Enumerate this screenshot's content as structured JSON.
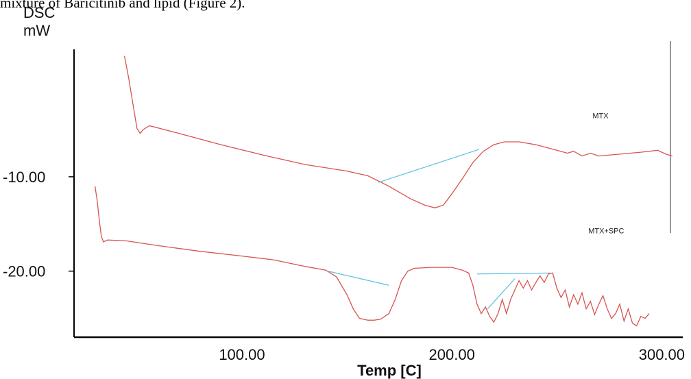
{
  "caption": "mixture of Baricitinib and lipid (Figure 2).",
  "chart_data": {
    "type": "line",
    "title": "",
    "ylabel_line1": "DSC",
    "ylabel_line2": "mW",
    "xlabel": "Temp [C]",
    "xlim": [
      20,
      310
    ],
    "ylim": [
      -27,
      3.5
    ],
    "xticks": [
      100,
      200,
      300
    ],
    "xtick_labels": [
      "100.00",
      "200.00",
      "300.00"
    ],
    "yticks": [
      -10,
      -20
    ],
    "ytick_labels": [
      "-10.00",
      "-20.00"
    ],
    "grid": false,
    "legend": "none",
    "annotations": [
      {
        "text": "MTX",
        "x": 267,
        "y": -3.8
      },
      {
        "text": "MTX+SPC",
        "x": 265,
        "y": -16.0
      }
    ],
    "series": [
      {
        "name": "MTX",
        "color": "#d9534f",
        "points": [
          [
            44,
            2.8
          ],
          [
            46,
            0.5
          ],
          [
            48,
            -2.2
          ],
          [
            50,
            -4.9
          ],
          [
            51.5,
            -5.4
          ],
          [
            53,
            -5.0
          ],
          [
            56,
            -4.6
          ],
          [
            70,
            -5.4
          ],
          [
            90,
            -6.6
          ],
          [
            110,
            -7.7
          ],
          [
            130,
            -8.7
          ],
          [
            150,
            -9.4
          ],
          [
            160,
            -9.9
          ],
          [
            170,
            -11.0
          ],
          [
            180,
            -12.3
          ],
          [
            187,
            -13.0
          ],
          [
            192,
            -13.3
          ],
          [
            196,
            -13.0
          ],
          [
            200,
            -11.8
          ],
          [
            205,
            -10.2
          ],
          [
            210,
            -8.5
          ],
          [
            215,
            -7.3
          ],
          [
            220,
            -6.6
          ],
          [
            225,
            -6.3
          ],
          [
            232,
            -6.3
          ],
          [
            240,
            -6.6
          ],
          [
            250,
            -7.2
          ],
          [
            255,
            -7.5
          ],
          [
            258,
            -7.3
          ],
          [
            262,
            -7.8
          ],
          [
            266,
            -7.5
          ],
          [
            270,
            -7.8
          ],
          [
            280,
            -7.6
          ],
          [
            290,
            -7.4
          ],
          [
            298,
            -7.2
          ],
          [
            302,
            -7.6
          ],
          [
            305,
            -7.8
          ]
        ]
      },
      {
        "name": "MTX+SPC",
        "color": "#d9534f",
        "points": [
          [
            30,
            -11.0
          ],
          [
            31,
            -12.5
          ],
          [
            32,
            -14.5
          ],
          [
            33,
            -16.3
          ],
          [
            34,
            -16.9
          ],
          [
            36,
            -16.7
          ],
          [
            45,
            -16.8
          ],
          [
            60,
            -17.3
          ],
          [
            80,
            -17.9
          ],
          [
            100,
            -18.4
          ],
          [
            115,
            -18.8
          ],
          [
            130,
            -19.5
          ],
          [
            140,
            -19.9
          ],
          [
            145,
            -20.6
          ],
          [
            150,
            -22.5
          ],
          [
            153,
            -24.0
          ],
          [
            156,
            -25.0
          ],
          [
            160,
            -25.2
          ],
          [
            163,
            -25.2
          ],
          [
            166,
            -25.1
          ],
          [
            170,
            -24.5
          ],
          [
            173,
            -23.0
          ],
          [
            176,
            -21.0
          ],
          [
            179,
            -20.0
          ],
          [
            182,
            -19.7
          ],
          [
            190,
            -19.6
          ],
          [
            200,
            -19.6
          ],
          [
            205,
            -19.9
          ],
          [
            208,
            -20.2
          ],
          [
            210,
            -21.5
          ],
          [
            212,
            -23.5
          ],
          [
            214,
            -24.5
          ],
          [
            216,
            -23.8
          ],
          [
            218,
            -24.8
          ],
          [
            220,
            -25.4
          ],
          [
            222,
            -24.5
          ],
          [
            224,
            -23.0
          ],
          [
            226,
            -24.5
          ],
          [
            228,
            -23.0
          ],
          [
            230,
            -22.0
          ],
          [
            232,
            -21.0
          ],
          [
            234,
            -21.8
          ],
          [
            236,
            -21.0
          ],
          [
            238,
            -22.0
          ],
          [
            240,
            -21.2
          ],
          [
            242,
            -20.5
          ],
          [
            244,
            -21.2
          ],
          [
            246,
            -20.3
          ],
          [
            248,
            -20.2
          ],
          [
            250,
            -21.8
          ],
          [
            252,
            -22.8
          ],
          [
            254,
            -22.0
          ],
          [
            256,
            -23.8
          ],
          [
            258,
            -22.5
          ],
          [
            260,
            -23.5
          ],
          [
            262,
            -22.3
          ],
          [
            264,
            -24.0
          ],
          [
            266,
            -23.2
          ],
          [
            268,
            -24.6
          ],
          [
            270,
            -23.5
          ],
          [
            272,
            -22.6
          ],
          [
            274,
            -24.0
          ],
          [
            276,
            -25.0
          ],
          [
            278,
            -24.5
          ],
          [
            280,
            -23.5
          ],
          [
            282,
            -25.3
          ],
          [
            284,
            -24.0
          ],
          [
            286,
            -25.5
          ],
          [
            288,
            -25.8
          ],
          [
            290,
            -24.8
          ],
          [
            292,
            -25.0
          ],
          [
            294,
            -24.5
          ]
        ]
      }
    ],
    "baseline_color": "#5bc0de",
    "baselines": [
      [
        [
          165,
          -10.6
        ],
        [
          213,
          -7.1
        ]
      ],
      [
        [
          141,
          -20.0
        ],
        [
          170,
          -21.5
        ]
      ],
      [
        [
          212,
          -20.3
        ],
        [
          247,
          -20.2
        ]
      ],
      [
        [
          217,
          -24.0
        ],
        [
          230,
          -20.8
        ]
      ]
    ]
  }
}
